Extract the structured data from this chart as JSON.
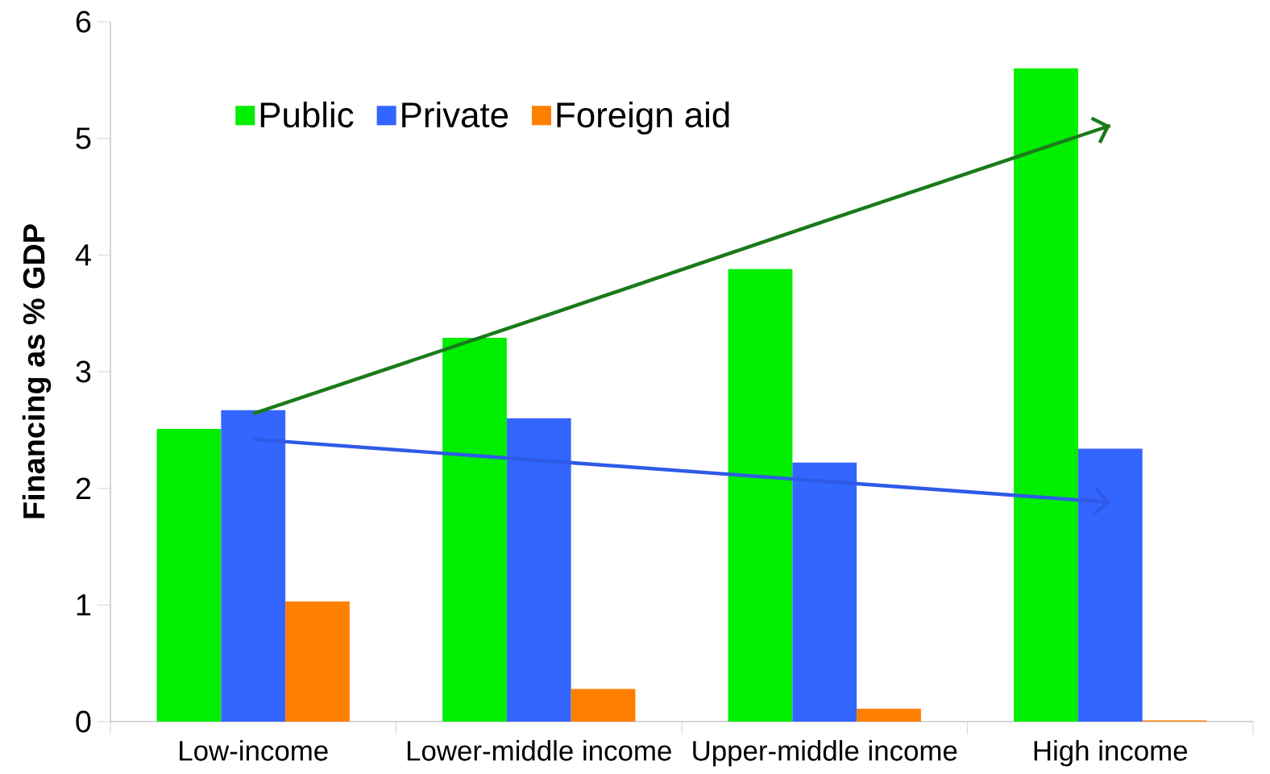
{
  "chart_data": {
    "type": "bar",
    "ylabel": "Financing as % GDP",
    "categories": [
      "Low-income",
      "Lower-middle income",
      "Upper-middle income",
      "High income"
    ],
    "series": [
      {
        "name": "Public",
        "color": "#00ee00",
        "values": [
          2.51,
          3.29,
          3.88,
          5.6
        ]
      },
      {
        "name": "Private",
        "color": "#3366ff",
        "values": [
          2.67,
          2.6,
          2.22,
          2.34
        ]
      },
      {
        "name": "Foreign aid",
        "color": "#ff8000",
        "values": [
          1.03,
          0.28,
          0.11,
          0.01
        ]
      },
      {
        "type": "line",
        "color": "#1a7a1a",
        "values": [
          2.64,
          3.46,
          4.29,
          5.11
        ]
      },
      {
        "type": "line",
        "color": "#2f5ae8",
        "values": [
          2.42,
          2.24,
          2.06,
          1.88
        ]
      }
    ],
    "ylim": [
      0,
      6
    ],
    "yticks": [
      0,
      1,
      2,
      3,
      4,
      5,
      6
    ],
    "grid": false,
    "legend": "top left"
  }
}
